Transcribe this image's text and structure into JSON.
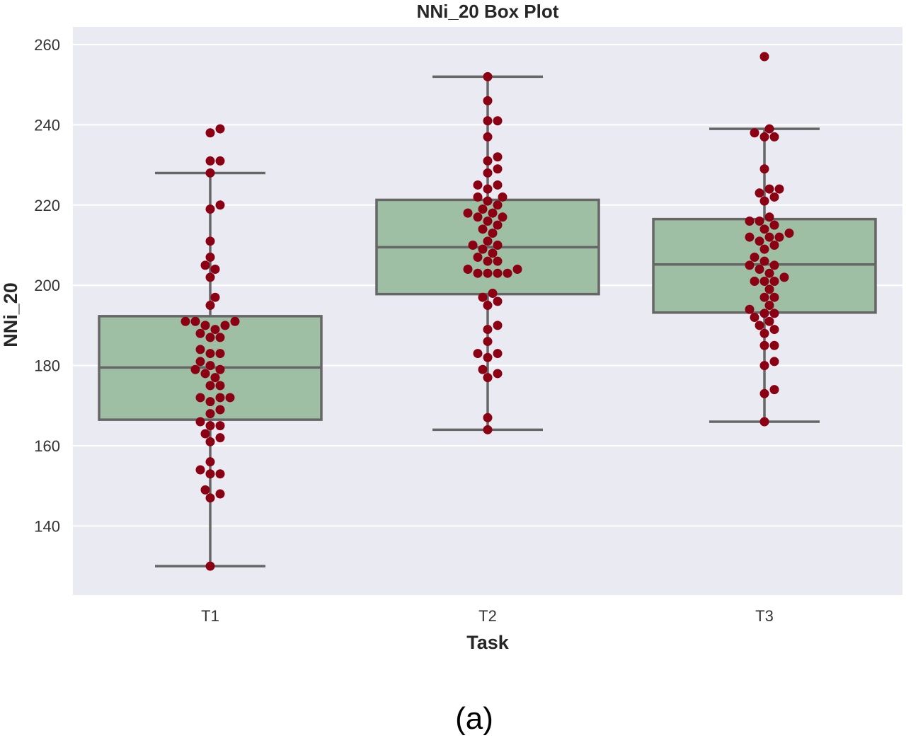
{
  "chart_data": {
    "type": "box",
    "title": "NNi_20 Box Plot",
    "xlabel": "Task",
    "ylabel": "NNi_20",
    "caption": "(a)",
    "categories": [
      "T1",
      "T2",
      "T3"
    ],
    "ylim": [
      122,
      264
    ],
    "yticks": [
      140,
      160,
      180,
      200,
      220,
      240,
      260
    ],
    "grid": true,
    "colors": {
      "background": "#eaeaf2",
      "grid": "#ffffff",
      "box_fill": "#9ebfa3",
      "box_edge": "#666666",
      "points": "#8b0012"
    },
    "boxes": [
      {
        "category": "T1",
        "whisker_low": 130,
        "q1": 166.5,
        "median": 179.5,
        "q3": 192.3,
        "whisker_high": 228
      },
      {
        "category": "T2",
        "whisker_low": 164,
        "q1": 197.8,
        "median": 209.5,
        "q3": 221.3,
        "whisker_high": 252
      },
      {
        "category": "T3",
        "whisker_low": 166,
        "q1": 193.2,
        "median": 205.2,
        "q3": 216.5,
        "whisker_high": 239
      }
    ],
    "points": {
      "T1": [
        239,
        238,
        231,
        231,
        228,
        220,
        219,
        211,
        207,
        205,
        204,
        202,
        197,
        195,
        191,
        191,
        191,
        190,
        190,
        189,
        188,
        187,
        187,
        184,
        183,
        183,
        181,
        180,
        179,
        179,
        178,
        177,
        175,
        175,
        172,
        172,
        172,
        171,
        169,
        168,
        166,
        165,
        165,
        163,
        162,
        161,
        156,
        154,
        153,
        153,
        149,
        148,
        147,
        130
      ],
      "T2": [
        252,
        246,
        241,
        241,
        237,
        232,
        231,
        229,
        228,
        225,
        225,
        224,
        222,
        222,
        221,
        220,
        219,
        218,
        218,
        217,
        217,
        216,
        215,
        214,
        213,
        211,
        210,
        210,
        209,
        208,
        207,
        206,
        206,
        204,
        204,
        203,
        203,
        203,
        203,
        198,
        197,
        196,
        195,
        190,
        189,
        186,
        183,
        183,
        182,
        179,
        178,
        177,
        167,
        164
      ],
      "T3": [
        257,
        239,
        238,
        237,
        237,
        229,
        224,
        224,
        223,
        222,
        221,
        217,
        216,
        216,
        215,
        214,
        213,
        212,
        212,
        212,
        211,
        210,
        209,
        207,
        206,
        205,
        205,
        204,
        203,
        202,
        201,
        201,
        201,
        199,
        197,
        197,
        195,
        194,
        193,
        193,
        192,
        191,
        190,
        189,
        188,
        185,
        185,
        181,
        180,
        174,
        173,
        166
      ]
    }
  }
}
